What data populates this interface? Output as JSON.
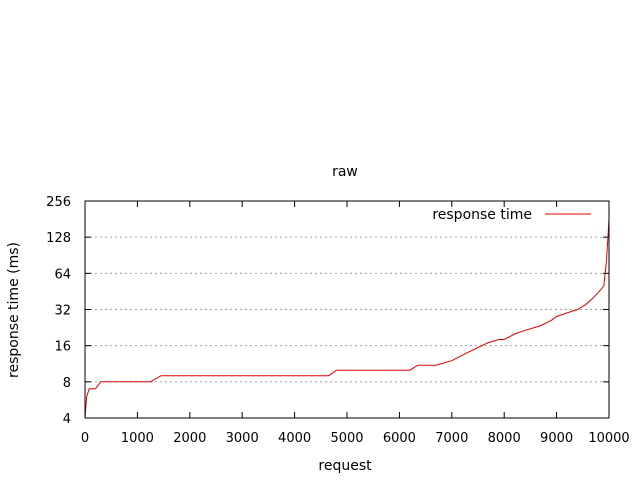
{
  "chart_data": {
    "type": "line",
    "title": "raw",
    "xlabel": "request",
    "ylabel": "response time (ms)",
    "xlim": [
      0,
      10000
    ],
    "ylim": [
      4,
      256
    ],
    "yscale": "log2",
    "xticks": [
      0,
      1000,
      2000,
      3000,
      4000,
      5000,
      6000,
      7000,
      8000,
      9000,
      10000
    ],
    "xtick_labels": [
      "0",
      "1000",
      "2000",
      "3000",
      "4000",
      "5000",
      "6000",
      "7000",
      "8000",
      "9000",
      "10000"
    ],
    "yticks": [
      4,
      8,
      16,
      32,
      64,
      128,
      256
    ],
    "ytick_labels": [
      "4",
      "8",
      "16",
      "32",
      "64",
      "128",
      "256"
    ],
    "grid": "horizontal dotted",
    "legend_position": "top-right",
    "series": [
      {
        "name": "response time",
        "color": "#e00000",
        "x": [
          0,
          30,
          80,
          200,
          300,
          1250,
          1450,
          1550,
          4650,
          4800,
          6200,
          6350,
          6700,
          7000,
          7300,
          7700,
          7900,
          8000,
          8200,
          8400,
          8700,
          8900,
          9000,
          9200,
          9400,
          9550,
          9700,
          9900,
          9950,
          10000
        ],
        "y": [
          4,
          6,
          7,
          7,
          8,
          8,
          9,
          9,
          9,
          10,
          10,
          11,
          11,
          12,
          14,
          17,
          18,
          18,
          20,
          21.5,
          23.5,
          26,
          28,
          30,
          32,
          35,
          40,
          50,
          80,
          180
        ]
      }
    ]
  }
}
